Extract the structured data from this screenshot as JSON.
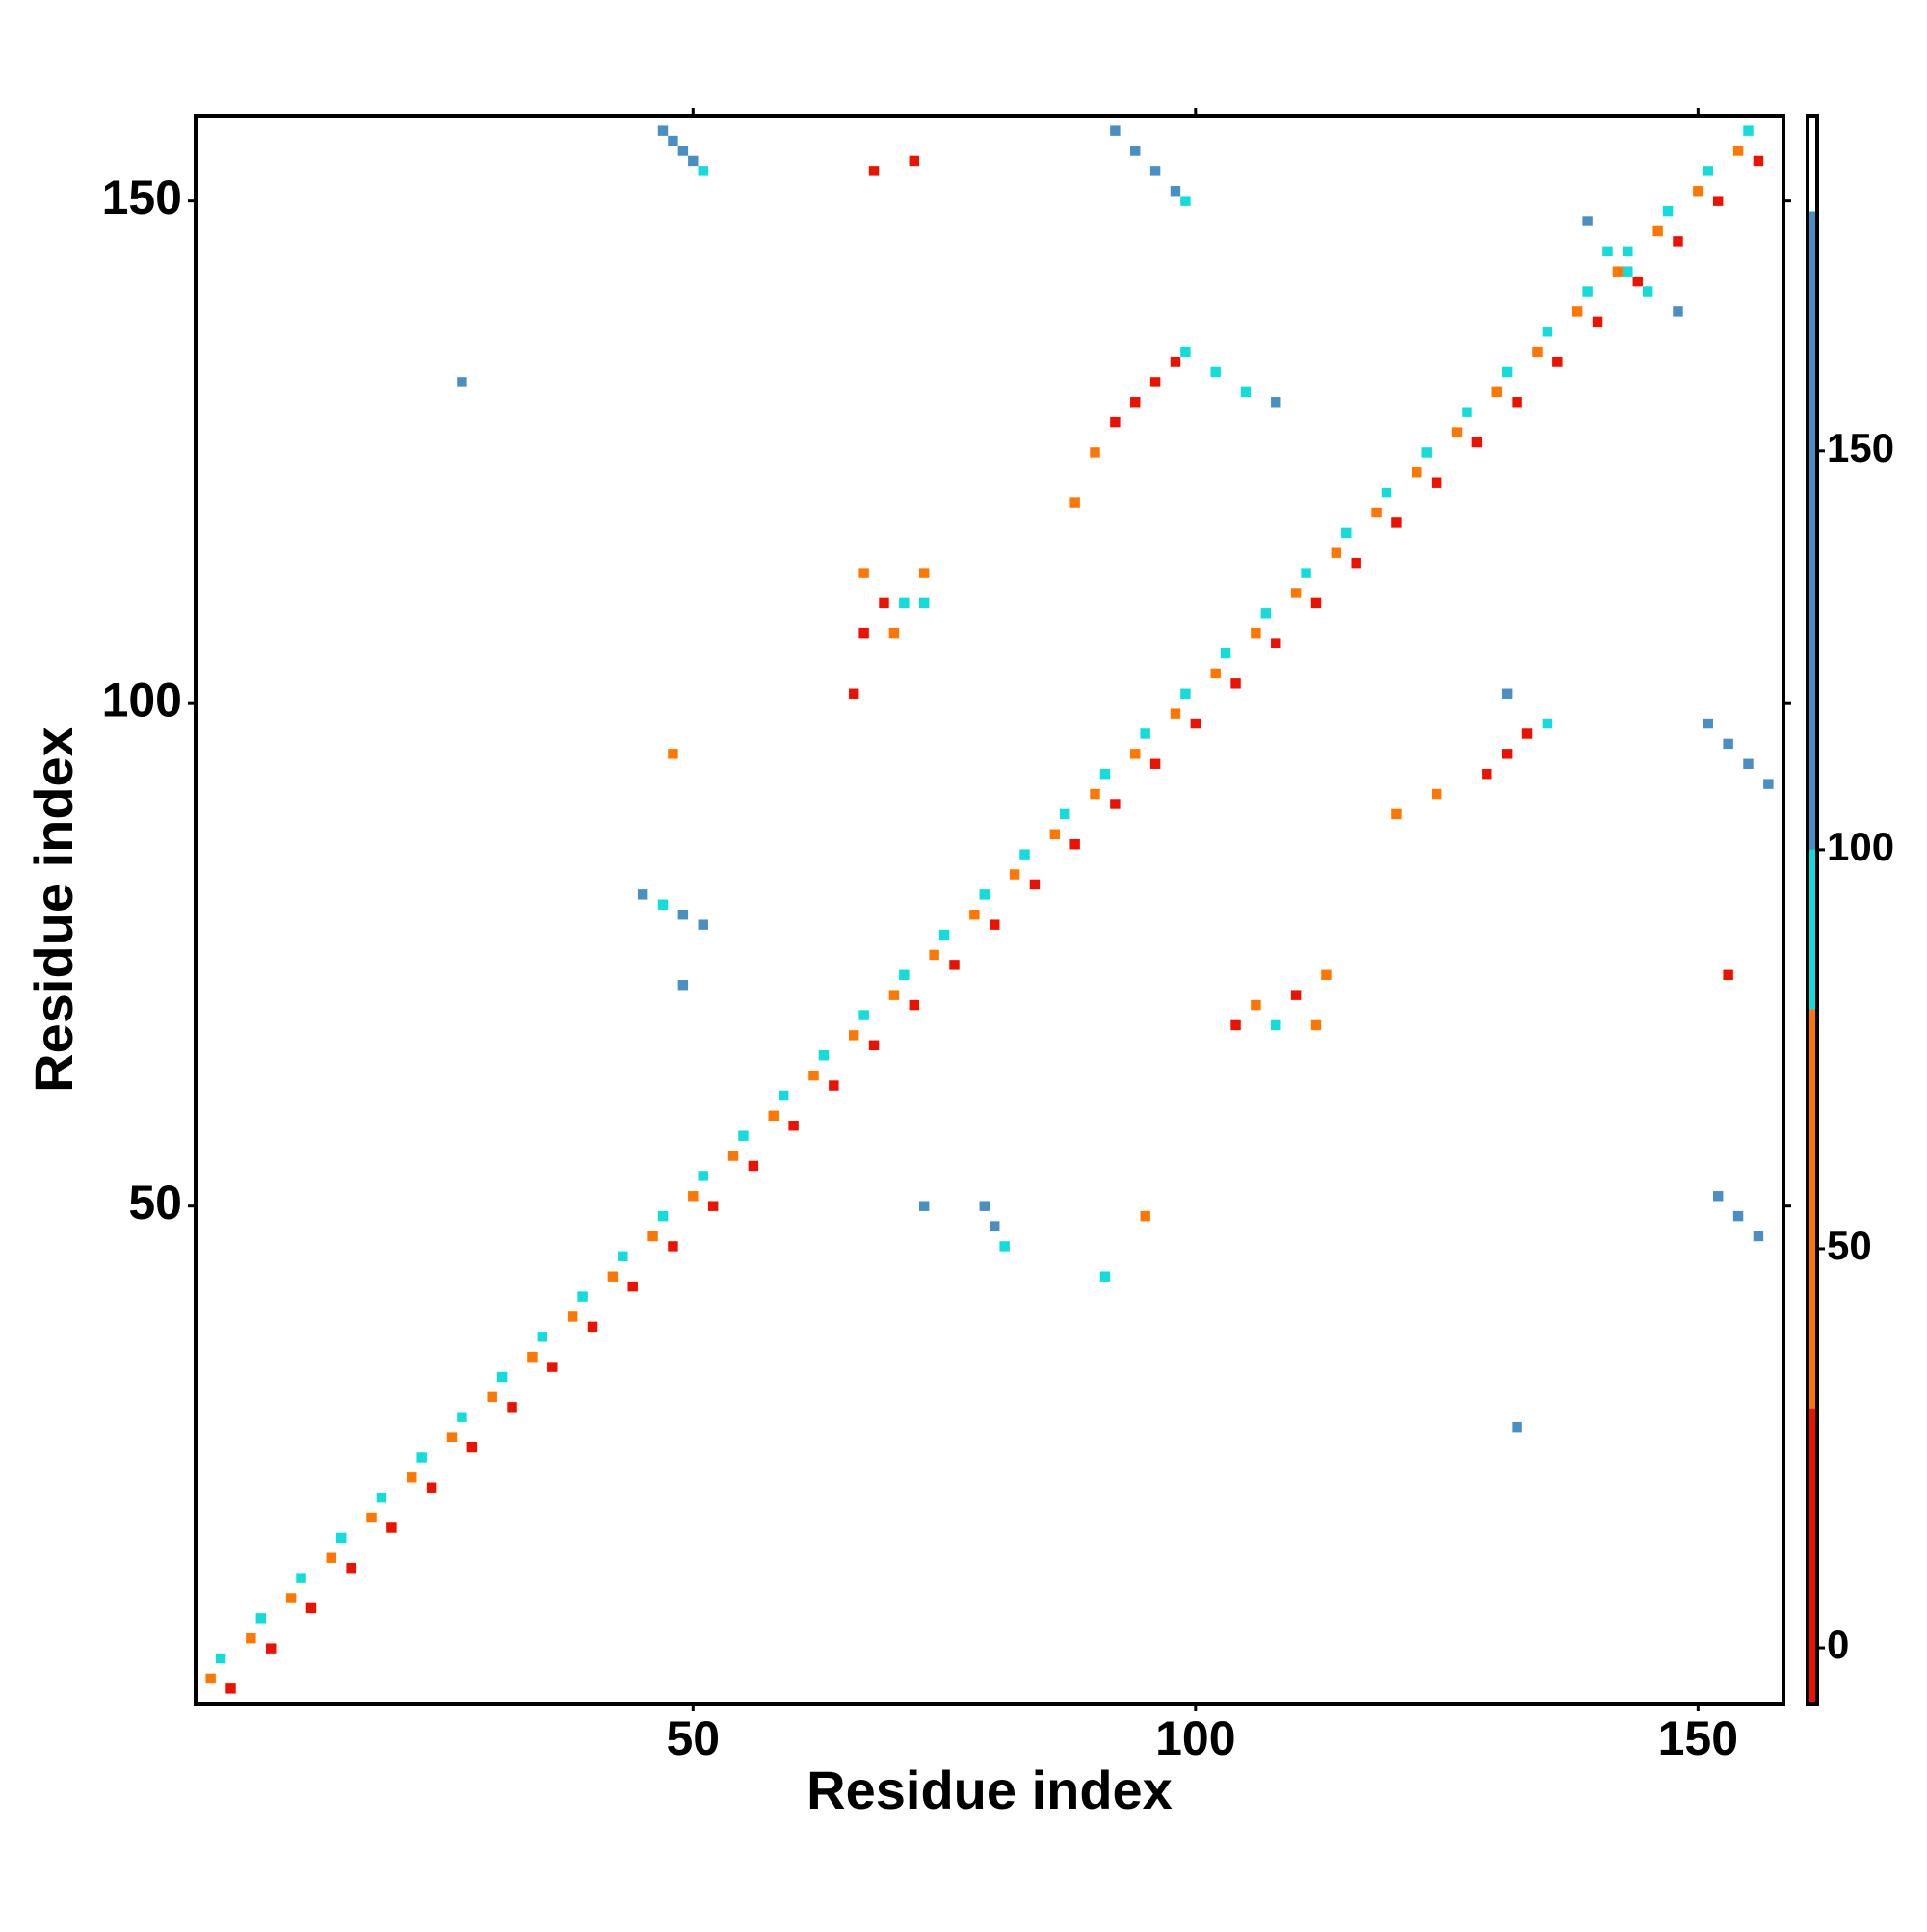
{
  "chart_data": {
    "type": "heatmap",
    "x_label": "Residue index",
    "y_label": "Residue index",
    "xlim": [
      0.5,
      158.5
    ],
    "ylim": [
      0.5,
      158.5
    ],
    "xticks": [
      50,
      100,
      150
    ],
    "yticks": [
      50,
      100,
      150
    ],
    "x": [
      2,
      6,
      10,
      14,
      18,
      22,
      26,
      30,
      34,
      38,
      42,
      46,
      50,
      54,
      58,
      62,
      66,
      70,
      74,
      78,
      82,
      86,
      90,
      94,
      98,
      102,
      106,
      110,
      114,
      118,
      122,
      126,
      130,
      134,
      138,
      142,
      146,
      150,
      154,
      4,
      8,
      12,
      16,
      20,
      24,
      28,
      32,
      36,
      40,
      44,
      48,
      52,
      56,
      60,
      64,
      68,
      72,
      76,
      80,
      84,
      88,
      92,
      96,
      100,
      104,
      108,
      112,
      116,
      120,
      124,
      128,
      132,
      136,
      140,
      144,
      148,
      152,
      156,
      3,
      7,
      11,
      15,
      19,
      23,
      27,
      31,
      35,
      39,
      43,
      47,
      51,
      55,
      59,
      63,
      67,
      71,
      75,
      79,
      83,
      87,
      91,
      95,
      99,
      103,
      107,
      111,
      115,
      119,
      123,
      127,
      131,
      135,
      139,
      143,
      147,
      151,
      155,
      47,
      48,
      49,
      50,
      51,
      92,
      94,
      96,
      98,
      99,
      68,
      72,
      27,
      92,
      94,
      96,
      98,
      90,
      88,
      99,
      102,
      105,
      108,
      139,
      141,
      143,
      145,
      148,
      129,
      131,
      133,
      135,
      124,
      120,
      131,
      151,
      153,
      155,
      157,
      152,
      154,
      156,
      45,
      47,
      49,
      51,
      49,
      79,
      80,
      81,
      73,
      67,
      69,
      71,
      73,
      67,
      70,
      66,
      73,
      104,
      106,
      108,
      110,
      112,
      113,
      132,
      48,
      95,
      91,
      153
    ],
    "y": [
      3,
      7,
      11,
      15,
      19,
      23,
      27,
      31,
      35,
      39,
      43,
      47,
      51,
      55,
      59,
      63,
      67,
      71,
      75,
      79,
      83,
      87,
      91,
      95,
      99,
      103,
      107,
      111,
      115,
      119,
      123,
      127,
      131,
      135,
      139,
      143,
      147,
      151,
      155,
      2,
      6,
      10,
      14,
      18,
      22,
      26,
      30,
      34,
      38,
      42,
      46,
      50,
      54,
      58,
      62,
      66,
      70,
      74,
      78,
      82,
      86,
      90,
      94,
      98,
      102,
      106,
      110,
      114,
      118,
      122,
      126,
      130,
      134,
      138,
      142,
      146,
      150,
      154,
      5,
      9,
      13,
      17,
      21,
      25,
      29,
      33,
      37,
      41,
      45,
      49,
      53,
      57,
      61,
      65,
      69,
      73,
      77,
      81,
      85,
      89,
      93,
      97,
      101,
      105,
      109,
      113,
      117,
      121,
      125,
      129,
      133,
      137,
      141,
      145,
      149,
      153,
      157,
      157,
      156,
      155,
      154,
      153,
      157,
      155,
      153,
      151,
      150,
      153,
      154,
      132,
      128,
      130,
      132,
      134,
      125,
      120,
      135,
      133,
      131,
      130,
      148,
      145,
      143,
      141,
      139,
      93,
      95,
      97,
      98,
      91,
      89,
      101,
      98,
      96,
      94,
      92,
      51,
      49,
      47,
      81,
      80,
      79,
      78,
      72,
      50,
      48,
      46,
      50,
      113,
      110,
      110,
      110,
      107,
      107,
      101,
      113,
      68,
      70,
      68,
      71,
      68,
      73,
      28,
      95,
      49,
      43,
      73
    ],
    "values": [
      50,
      50,
      50,
      50,
      50,
      50,
      50,
      50,
      50,
      50,
      50,
      50,
      50,
      50,
      50,
      50,
      50,
      50,
      50,
      50,
      50,
      50,
      50,
      50,
      50,
      50,
      50,
      50,
      50,
      50,
      50,
      50,
      50,
      50,
      50,
      50,
      50,
      50,
      50,
      10,
      10,
      10,
      10,
      10,
      10,
      10,
      10,
      10,
      10,
      10,
      10,
      10,
      10,
      10,
      10,
      10,
      10,
      10,
      10,
      10,
      10,
      10,
      10,
      10,
      10,
      10,
      10,
      10,
      10,
      10,
      10,
      10,
      10,
      10,
      10,
      10,
      10,
      10,
      90,
      90,
      90,
      90,
      90,
      90,
      90,
      90,
      90,
      90,
      90,
      90,
      90,
      90,
      90,
      90,
      90,
      90,
      90,
      90,
      90,
      90,
      90,
      90,
      90,
      90,
      90,
      90,
      90,
      90,
      90,
      90,
      90,
      90,
      90,
      90,
      90,
      90,
      90,
      140,
      140,
      140,
      140,
      90,
      140,
      140,
      140,
      140,
      90,
      10,
      10,
      140,
      10,
      10,
      10,
      10,
      50,
      50,
      90,
      90,
      90,
      140,
      140,
      90,
      90,
      90,
      140,
      10,
      10,
      10,
      90,
      50,
      50,
      140,
      140,
      140,
      140,
      140,
      140,
      140,
      140,
      140,
      90,
      140,
      140,
      140,
      140,
      140,
      90,
      140,
      50,
      10,
      90,
      90,
      10,
      50,
      10,
      50,
      10,
      50,
      90,
      10,
      50,
      50,
      140,
      50,
      50,
      90,
      10
    ],
    "colorbar": {
      "lim": [
        -7,
        192
      ],
      "ticks": [
        0,
        50,
        100,
        150
      ],
      "bins": [
        -7,
        30,
        80,
        100,
        180,
        192
      ],
      "colors": [
        "#ee1100",
        "#ff7700",
        "#11dddd",
        "#4a8fc4",
        "#ffffff"
      ]
    }
  }
}
